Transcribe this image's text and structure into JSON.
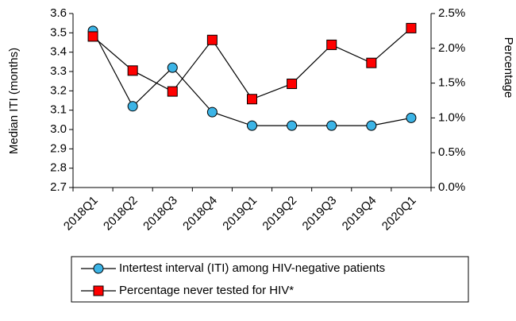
{
  "chart_data": {
    "type": "line",
    "categories": [
      "2018Q1",
      "2018Q2",
      "2018Q3",
      "2018Q4",
      "2019Q1",
      "2019Q2",
      "2019Q3",
      "2019Q4",
      "2020Q1"
    ],
    "series": [
      {
        "name": "Intertest interval (ITI) among HIV-negative patients",
        "color": "#3cb4e6",
        "marker": "circle",
        "values": [
          3.51,
          3.12,
          3.32,
          3.09,
          3.02,
          3.02,
          3.02,
          3.02,
          3.06
        ]
      },
      {
        "name": "Percentage never tested for HIV*",
        "color": "#ff0000",
        "marker": "square",
        "axis": "y2",
        "values": [
          2.17,
          1.68,
          1.38,
          2.12,
          1.27,
          1.49,
          2.05,
          1.79,
          2.29
        ]
      }
    ],
    "ylabel": "Median ITI (months)",
    "y2label": "Percentage",
    "ylim": [
      2.7,
      3.6
    ],
    "yticks": [
      2.7,
      2.8,
      2.9,
      {
        "value": 3,
        "label": "3.0"
      },
      3.1,
      3.2,
      3.3,
      3.4,
      3.5,
      3.6
    ],
    "y2lim": [
      0,
      2.5
    ],
    "y2ticks": [
      {
        "value": 0,
        "label": "0.0%"
      },
      {
        "value": 0.5,
        "label": "0.5%"
      },
      {
        "value": 1,
        "label": "1.0%"
      },
      {
        "value": 1.5,
        "label": "1.5%"
      },
      {
        "value": 2,
        "label": "2.0%"
      },
      {
        "value": 2.5,
        "label": "2.5%"
      }
    ],
    "legend": "bottom"
  }
}
